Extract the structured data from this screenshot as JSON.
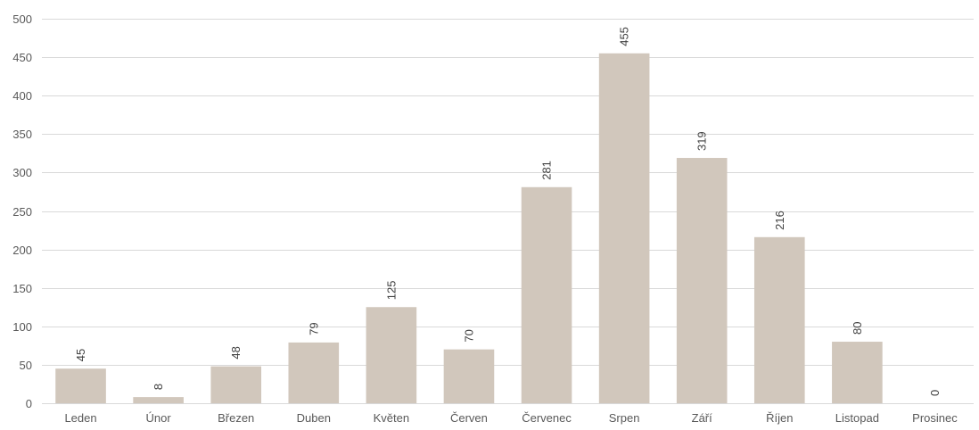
{
  "chart_data": {
    "type": "bar",
    "categories": [
      "Leden",
      "Únor",
      "Březen",
      "Duben",
      "Květen",
      "Červen",
      "Červenec",
      "Srpen",
      "Září",
      "Říjen",
      "Listopad",
      "Prosinec"
    ],
    "values": [
      45,
      8,
      48,
      79,
      125,
      70,
      281,
      455,
      319,
      216,
      80,
      0
    ],
    "title": "",
    "xlabel": "",
    "ylabel": "",
    "ylim": [
      0,
      500
    ],
    "yticks": [
      0,
      50,
      100,
      150,
      200,
      250,
      300,
      350,
      400,
      450,
      500
    ],
    "grid": true,
    "legend": "none",
    "data_labels": true,
    "data_label_orientation": "vertical",
    "colors": {
      "bar": "#d1c7bc",
      "grid": "#d9d9d9",
      "tick_text": "#595959",
      "label_text": "#404040"
    }
  }
}
